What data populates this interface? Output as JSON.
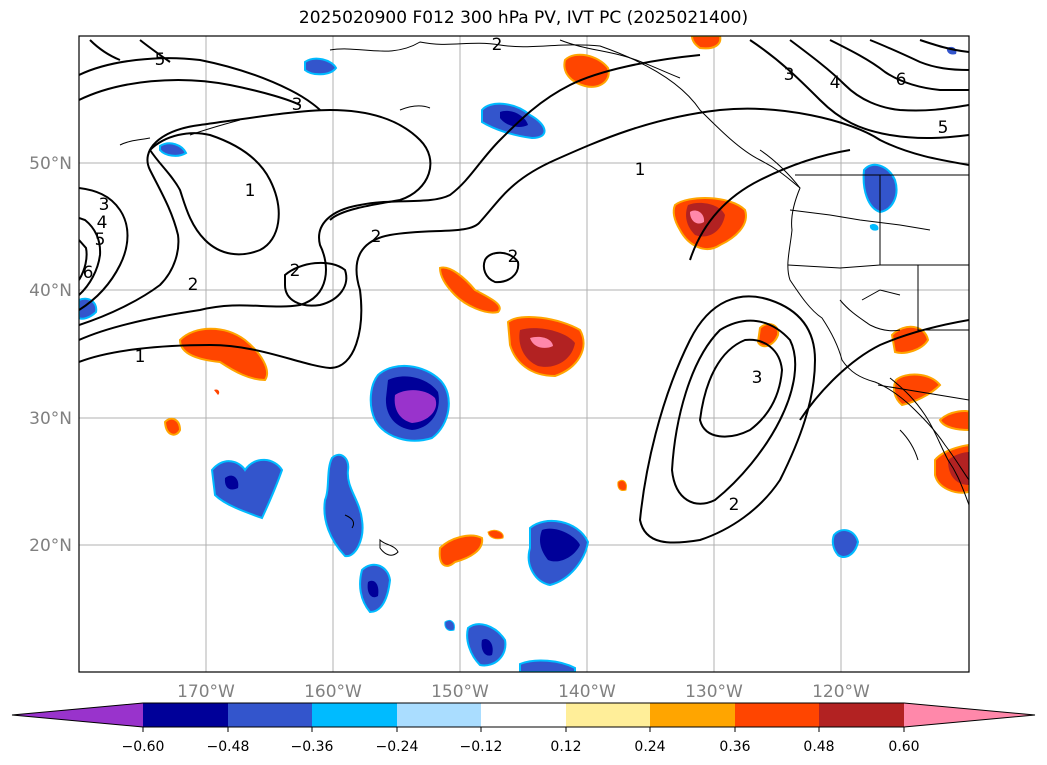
{
  "title": "2025020900 F012 300 hPa PV, IVT PC (2025021400)",
  "lat_labels": [
    "50°N",
    "40°N",
    "30°N",
    "20°N"
  ],
  "lon_labels": [
    "170°W",
    "160°W",
    "150°W",
    "140°W",
    "130°W",
    "120°W"
  ],
  "contour_labels": [
    "1",
    "2",
    "2",
    "2",
    "2",
    "3",
    "3",
    "4",
    "5",
    "6",
    "1",
    "2",
    "3",
    "1",
    "2",
    "3",
    "4",
    "5",
    "6",
    "5"
  ],
  "colorbar": {
    "ticks": [
      "−0.60",
      "−0.48",
      "−0.36",
      "−0.24",
      "−0.12",
      "0.12",
      "0.24",
      "0.36",
      "0.48",
      "0.60"
    ],
    "colors": [
      "#9933cc",
      "#000099",
      "#3355cc",
      "#00bbff",
      "#aaddff",
      "#ffffff",
      "#ffee99",
      "#ffa500",
      "#ff4500",
      "#b22222",
      "#ff88aa"
    ]
  },
  "fill_colors": {
    "neg_light": "#aaddff",
    "neg_mid": "#00bbff",
    "neg_strong": "#3355cc",
    "neg_deep": "#000099",
    "neg_max": "#9933cc",
    "pos_light": "#ffee99",
    "pos_mid": "#ffa500",
    "pos_strong": "#ff4500",
    "pos_deep": "#b22222",
    "pos_max": "#ff88aa"
  }
}
